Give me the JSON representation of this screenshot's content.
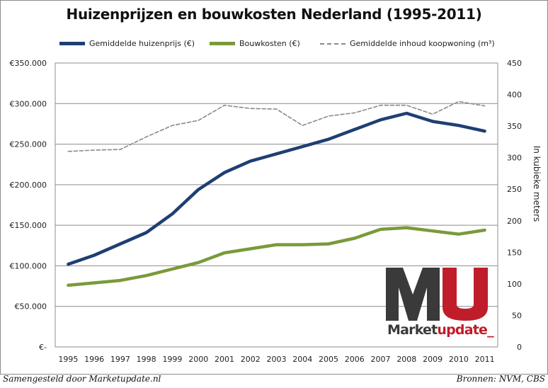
{
  "chart_data": {
    "type": "line",
    "title": "Huizenprijzen en bouwkosten Nederland (1995-2011)",
    "x": [
      "1995",
      "1996",
      "1997",
      "1998",
      "1999",
      "2000",
      "2001",
      "2002",
      "2003",
      "2004",
      "2005",
      "2006",
      "2007",
      "2008",
      "2009",
      "2010",
      "2011"
    ],
    "y_left_ticks": [
      "€-",
      "€50.000",
      "€100.000",
      "€150.000",
      "€200.000",
      "€250.000",
      "€300.000",
      "€350.000"
    ],
    "y_left_range": [
      0,
      350000
    ],
    "y_right_ticks": [
      "0",
      "50",
      "100",
      "150",
      "200",
      "250",
      "300",
      "350",
      "400",
      "450"
    ],
    "y_right_range": [
      0,
      450
    ],
    "y_right_label": "In kubieke meters",
    "grid": true,
    "legend_position": "top",
    "series": [
      {
        "name": "Gemiddelde huizenprijs (€)",
        "axis": "left",
        "style": "solid",
        "color": "#1f3f73",
        "values": [
          102000,
          113000,
          127000,
          141000,
          164000,
          194000,
          215000,
          229000,
          238000,
          247000,
          256000,
          268000,
          280000,
          288000,
          278000,
          273000,
          266000
        ]
      },
      {
        "name": "Bouwkosten (€)",
        "axis": "left",
        "style": "solid",
        "color": "#7a9a3a",
        "values": [
          76000,
          79000,
          82000,
          88000,
          96000,
          104000,
          116000,
          121000,
          126000,
          126000,
          127000,
          134000,
          145000,
          147000,
          143000,
          139000,
          144000
        ]
      },
      {
        "name": "Gemiddelde inhoud koopwoning (m³)",
        "axis": "right",
        "style": "dashed",
        "color": "#8a8a8a",
        "values": [
          310,
          312,
          313,
          333,
          351,
          359,
          383,
          378,
          377,
          351,
          366,
          371,
          383,
          383,
          369,
          389,
          382
        ]
      }
    ]
  },
  "footer": {
    "left": "Samengesteld door Marketupdate.nl",
    "right": "Bronnen: NVM, CBS"
  },
  "logo": {
    "letters": "MU",
    "word_part1": "Market",
    "word_part2": "update_",
    "color_dark": "#3a3a3a",
    "color_red": "#c01d2b"
  }
}
